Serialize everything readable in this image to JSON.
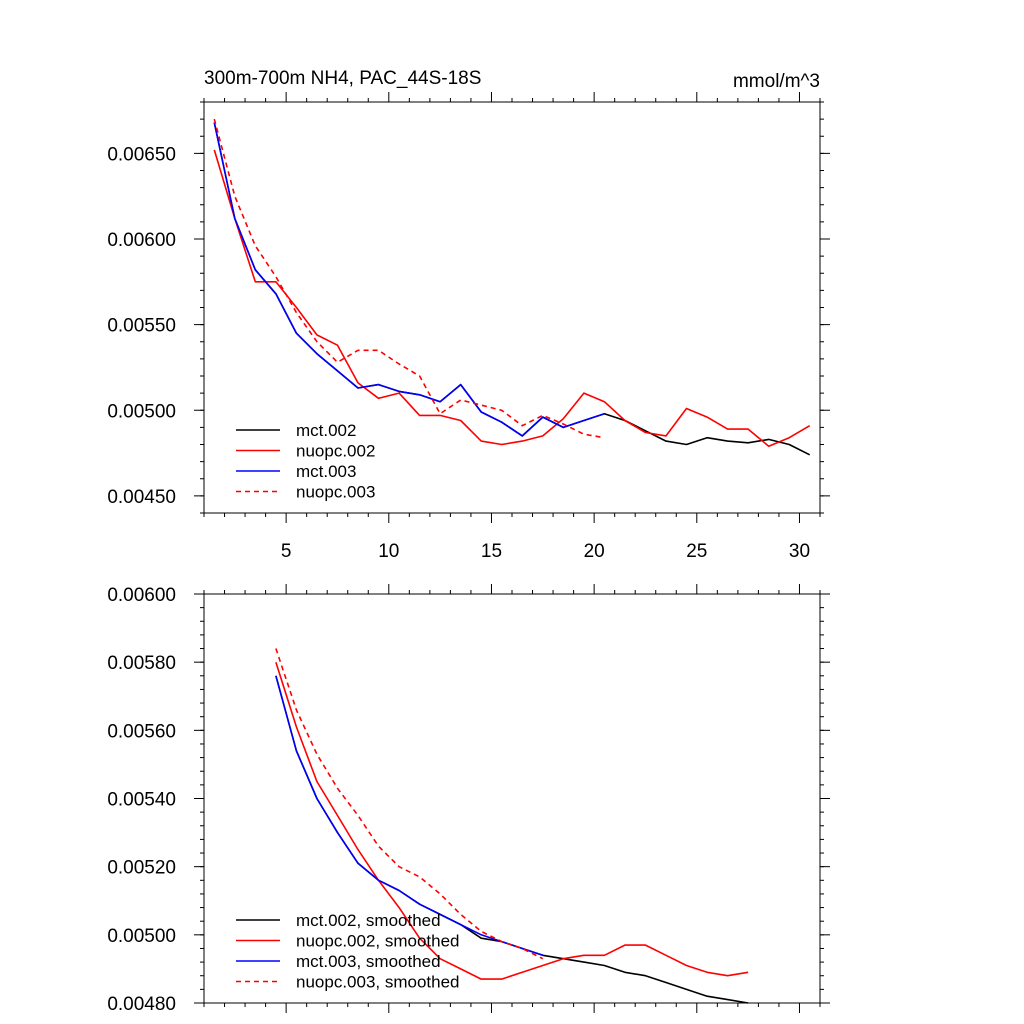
{
  "colors": {
    "mct002": "#000000",
    "nuopc002": "#ff0000",
    "mct003": "#0000ff",
    "nuopc003": "#ff0000"
  },
  "chart_data": [
    {
      "type": "line",
      "title": "300m-700m NH4, PAC_44S-18S",
      "units": "mmol/m^3",
      "xlim": [
        1,
        31
      ],
      "ylim": [
        0.0044,
        0.0068
      ],
      "xticks": [
        5,
        10,
        15,
        20,
        25,
        30
      ],
      "xtick_labels": [
        "5",
        "10",
        "15",
        "20",
        "25",
        "30"
      ],
      "yticks": [
        0.0045,
        0.005,
        0.0055,
        0.006,
        0.0065
      ],
      "ytick_labels": [
        "0.00450",
        "0.00500",
        "0.00550",
        "0.00600",
        "0.00650"
      ],
      "legend_position": "bottom-left",
      "series": [
        {
          "name": "mct.002",
          "color": "#000000",
          "dash": "solid",
          "x": [
            1.5,
            2.5,
            3.5,
            4.5,
            5.5,
            6.5,
            7.5,
            8.5,
            9.5,
            10.5,
            11.5,
            12.5,
            13.5,
            14.5,
            15.5,
            16.5,
            17.5,
            18.5,
            19.5,
            20.5,
            21.5,
            22.5,
            23.5,
            24.5,
            25.5,
            26.5,
            27.5,
            28.5,
            29.5,
            30.5
          ],
          "y": [
            0.00668,
            0.00612,
            0.00582,
            0.00568,
            0.00545,
            0.00533,
            0.00523,
            0.00513,
            0.00515,
            0.00511,
            0.00509,
            0.00505,
            0.00515,
            0.00499,
            0.00493,
            0.00485,
            0.00496,
            0.0049,
            0.00494,
            0.00498,
            0.00494,
            0.00488,
            0.00482,
            0.0048,
            0.00484,
            0.00482,
            0.00481,
            0.00483,
            0.0048,
            0.00474
          ]
        },
        {
          "name": "nuopc.002",
          "color": "#ff0000",
          "dash": "solid",
          "x": [
            1.5,
            2.5,
            3.5,
            4.5,
            5.5,
            6.5,
            7.5,
            8.5,
            9.5,
            10.5,
            11.5,
            12.5,
            13.5,
            14.5,
            15.5,
            16.5,
            17.5,
            18.5,
            19.5,
            20.5,
            21.5,
            22.5,
            23.5,
            24.5,
            25.5,
            26.5,
            27.5,
            28.5,
            29.5,
            30.5
          ],
          "y": [
            0.00652,
            0.00612,
            0.00575,
            0.00575,
            0.0056,
            0.00544,
            0.00538,
            0.00516,
            0.00507,
            0.0051,
            0.00497,
            0.00497,
            0.00494,
            0.00482,
            0.0048,
            0.00482,
            0.00485,
            0.00495,
            0.0051,
            0.00505,
            0.00494,
            0.00487,
            0.00485,
            0.00501,
            0.00496,
            0.00489,
            0.00489,
            0.00479,
            0.00484,
            0.00491
          ]
        },
        {
          "name": "mct.003",
          "color": "#0000ff",
          "dash": "solid",
          "x": [
            1.5,
            2.5,
            3.5,
            4.5,
            5.5,
            6.5,
            7.5,
            8.5,
            9.5,
            10.5,
            11.5,
            12.5,
            13.5,
            14.5,
            15.5,
            16.5,
            17.5,
            18.5,
            19.5,
            20.5
          ],
          "y": [
            0.00668,
            0.00612,
            0.00582,
            0.00568,
            0.00545,
            0.00533,
            0.00523,
            0.00513,
            0.00515,
            0.00511,
            0.00509,
            0.00505,
            0.00515,
            0.00499,
            0.00493,
            0.00485,
            0.00496,
            0.0049,
            0.00494,
            0.00498
          ]
        },
        {
          "name": "nuopc.003",
          "color": "#ff0000",
          "dash": "dashed",
          "x": [
            1.5,
            2.5,
            3.5,
            4.5,
            5.5,
            6.5,
            7.5,
            8.5,
            9.5,
            10.5,
            11.5,
            12.5,
            13.5,
            14.5,
            15.5,
            16.5,
            17.5,
            18.5,
            19.5,
            20.5
          ],
          "y": [
            0.0067,
            0.00625,
            0.00596,
            0.00578,
            0.00557,
            0.0054,
            0.00528,
            0.00535,
            0.00535,
            0.00527,
            0.0052,
            0.00498,
            0.00506,
            0.00503,
            0.005,
            0.00491,
            0.00497,
            0.00492,
            0.00486,
            0.00484
          ]
        }
      ]
    },
    {
      "type": "line",
      "title": "",
      "units": "",
      "xlim": [
        1,
        31
      ],
      "ylim": [
        0.0048,
        0.006
      ],
      "xticks": [
        5,
        10,
        15,
        20,
        25,
        30
      ],
      "xtick_labels": [],
      "yticks": [
        0.0048,
        0.005,
        0.0052,
        0.0054,
        0.0056,
        0.0058,
        0.006
      ],
      "ytick_labels": [
        "0.00480",
        "0.00500",
        "0.00520",
        "0.00540",
        "0.00560",
        "0.00580",
        "0.00600"
      ],
      "legend_position": "bottom-left",
      "series": [
        {
          "name": "mct.002, smoothed",
          "color": "#000000",
          "dash": "solid",
          "x": [
            4.5,
            5.5,
            6.5,
            7.5,
            8.5,
            9.5,
            10.5,
            11.5,
            12.5,
            13.5,
            14.5,
            15.5,
            16.5,
            17.5,
            18.5,
            19.5,
            20.5,
            21.5,
            22.5,
            23.5,
            24.5,
            25.5,
            26.5,
            27.5
          ],
          "y": [
            0.00576,
            0.00554,
            0.0054,
            0.0053,
            0.00521,
            0.00516,
            0.00513,
            0.00509,
            0.00506,
            0.00503,
            0.00499,
            0.00498,
            0.00496,
            0.00494,
            0.00493,
            0.00492,
            0.00491,
            0.00489,
            0.00488,
            0.00486,
            0.00484,
            0.00482,
            0.00481,
            0.0048
          ]
        },
        {
          "name": "nuopc.002, smoothed",
          "color": "#ff0000",
          "dash": "solid",
          "x": [
            4.5,
            5.5,
            6.5,
            7.5,
            8.5,
            9.5,
            10.5,
            11.5,
            12.5,
            13.5,
            14.5,
            15.5,
            16.5,
            17.5,
            18.5,
            19.5,
            20.5,
            21.5,
            22.5,
            23.5,
            24.5,
            25.5,
            26.5,
            27.5
          ],
          "y": [
            0.0058,
            0.00561,
            0.00545,
            0.00535,
            0.00525,
            0.00516,
            0.00508,
            0.00499,
            0.00493,
            0.0049,
            0.00487,
            0.00487,
            0.00489,
            0.00491,
            0.00493,
            0.00494,
            0.00494,
            0.00497,
            0.00497,
            0.00494,
            0.00491,
            0.00489,
            0.00488,
            0.00489
          ]
        },
        {
          "name": "mct.003, smoothed",
          "color": "#0000ff",
          "dash": "solid",
          "x": [
            4.5,
            5.5,
            6.5,
            7.5,
            8.5,
            9.5,
            10.5,
            11.5,
            12.5,
            13.5,
            14.5,
            15.5,
            16.5,
            17.5
          ],
          "y": [
            0.00576,
            0.00554,
            0.0054,
            0.0053,
            0.00521,
            0.00516,
            0.00513,
            0.00509,
            0.00506,
            0.00503,
            0.005,
            0.00498,
            0.00496,
            0.00494
          ]
        },
        {
          "name": "nuopc.003, smoothed",
          "color": "#ff0000",
          "dash": "dashed",
          "x": [
            4.5,
            5.5,
            6.5,
            7.5,
            8.5,
            9.5,
            10.5,
            11.5,
            12.5,
            13.5,
            14.5,
            15.5,
            16.5,
            17.5
          ],
          "y": [
            0.00584,
            0.00566,
            0.00553,
            0.00543,
            0.00535,
            0.00526,
            0.0052,
            0.00517,
            0.00512,
            0.00506,
            0.00501,
            0.00498,
            0.00496,
            0.00493
          ]
        }
      ]
    }
  ]
}
